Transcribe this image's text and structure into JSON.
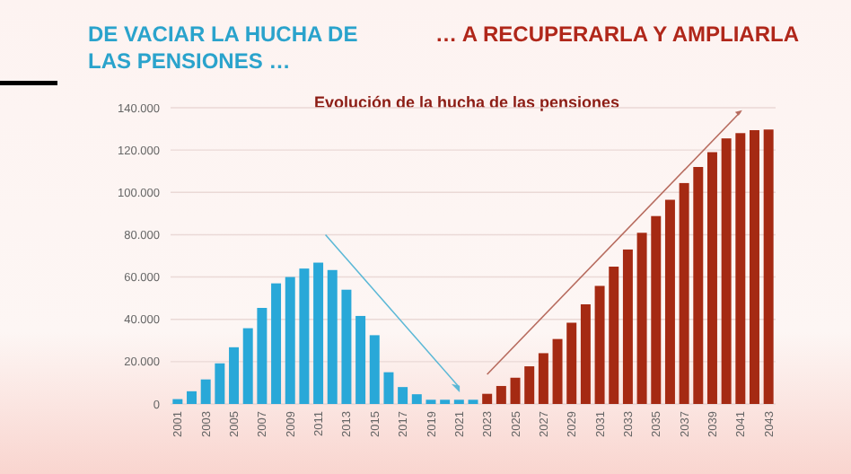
{
  "chart_data": {
    "type": "bar",
    "title": "Evolución de la hucha de las pensiones",
    "annotations": [
      "DE VACIAR LA HUCHA DE LAS PENSIONES …",
      "… A RECUPERARLA Y AMPLIARLA"
    ],
    "categories": [
      "2001",
      null,
      "2003",
      null,
      "2005",
      null,
      "2007",
      null,
      "2009",
      null,
      "2011",
      null,
      "2013",
      null,
      "2015",
      null,
      "2017",
      null,
      "2019",
      null,
      "2021",
      null,
      "2023",
      null,
      "2025",
      null,
      "2027",
      null,
      "2029",
      null,
      "2031",
      null,
      "2033",
      null,
      "2035",
      null,
      "2037",
      null,
      "2039",
      null,
      "2041",
      null,
      "2043"
    ],
    "series": [
      {
        "color": "#29a8d8",
        "values": [
          2300,
          6000,
          11600,
          19200,
          26800,
          35800,
          45400,
          57000,
          60000,
          64000,
          66800,
          63300,
          54000,
          41600,
          32500,
          15000,
          8000,
          4600,
          2000,
          2000,
          2000,
          2000,
          null,
          null,
          null,
          null,
          null,
          null,
          null,
          null,
          null,
          null,
          null,
          null,
          null,
          null,
          null,
          null,
          null,
          null,
          null,
          null,
          null
        ]
      },
      {
        "color": "#a52a13",
        "values": [
          null,
          null,
          null,
          null,
          null,
          null,
          null,
          null,
          null,
          null,
          null,
          null,
          null,
          null,
          null,
          null,
          null,
          null,
          null,
          null,
          null,
          null,
          4800,
          8500,
          12400,
          17800,
          24000,
          30700,
          38400,
          47100,
          55800,
          64900,
          73000,
          80900,
          88800,
          96500,
          104400,
          112000,
          119000,
          125500,
          128000,
          129400,
          129700
        ]
      }
    ],
    "ylim": [
      0,
      140000
    ],
    "yticks": [
      {
        "value": 0,
        "label": "0"
      },
      {
        "value": 20000,
        "label": "20.000"
      },
      {
        "value": 40000,
        "label": "40.000"
      },
      {
        "value": 60000,
        "label": "60.000"
      },
      {
        "value": 80000,
        "label": "80.000"
      },
      {
        "value": 100000,
        "label": "100.000"
      },
      {
        "value": 120000,
        "label": "120.000"
      },
      {
        "value": 140000,
        "label": "140.000"
      }
    ],
    "grid": "y"
  }
}
